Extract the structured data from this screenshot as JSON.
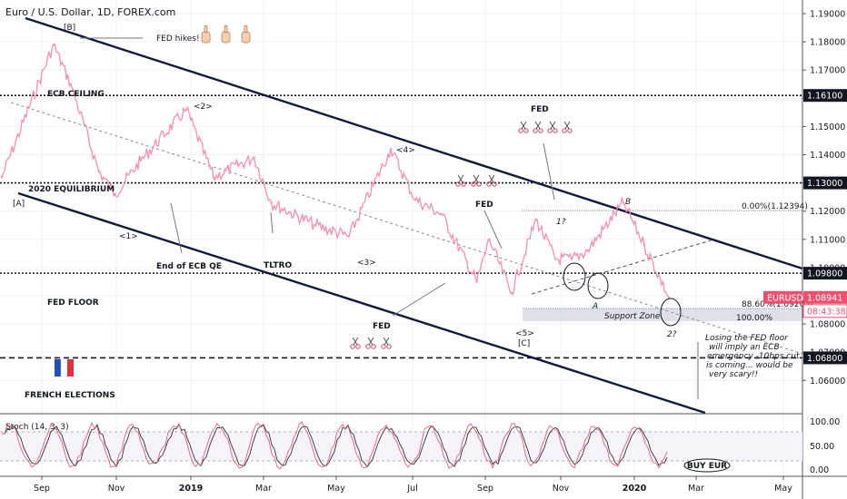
{
  "header": {
    "title": "Euro / U.S. Dollar, 1D, FOREX.com"
  },
  "chart_data": {
    "type": "line",
    "symbol": "EURUSD",
    "last_price": "1.08941",
    "countdown": "08:43:38",
    "ylim": [
      1.055,
      1.195
    ],
    "y_ticks": [
      "1.19000",
      "1.18000",
      "1.17000",
      "1.16000",
      "1.15000",
      "1.14000",
      "1.13000",
      "1.12000",
      "1.11000",
      "1.10000",
      "1.09000",
      "1.08000",
      "1.07000",
      "1.06000"
    ],
    "x_ticks": [
      "Sep",
      "Nov",
      "2019",
      "Mar",
      "May",
      "Jul",
      "Sep",
      "Nov",
      "2020",
      "Mar",
      "May"
    ],
    "x": [
      "2018-08-13",
      "2018-09-24",
      "2018-10-08",
      "2018-10-31",
      "2018-11-13",
      "2018-12-04",
      "2019-01-10",
      "2019-02-01",
      "2019-03-06",
      "2019-03-20",
      "2019-04-25",
      "2019-05-22",
      "2019-06-25",
      "2019-07-15",
      "2019-08-05",
      "2019-09-03",
      "2019-09-13",
      "2019-10-01",
      "2019-10-21",
      "2019-11-06",
      "2019-11-19",
      "2019-12-02",
      "2019-12-31",
      "2020-01-17",
      "2020-02-06"
    ],
    "values": [
      1.132,
      1.179,
      1.165,
      1.134,
      1.126,
      1.138,
      1.156,
      1.132,
      1.139,
      1.123,
      1.115,
      1.111,
      1.142,
      1.124,
      1.119,
      1.095,
      1.11,
      1.091,
      1.117,
      1.103,
      1.103,
      1.106,
      1.123,
      1.108,
      1.0894
    ],
    "levels": [
      {
        "label": "1.16100",
        "value": 1.161,
        "name": "ECB CEILING"
      },
      {
        "label": "1.13000",
        "value": 1.13,
        "name": "2020 EQUILIBRIUM"
      },
      {
        "label": "1.09800",
        "value": 1.098,
        "name": "FED FLOOR"
      },
      {
        "label": "1.06800",
        "value": 1.068,
        "name": "FRENCH ELECTIONS"
      }
    ],
    "fib": {
      "level_0": {
        "label": "0.00%(1.12394)",
        "value": 1.12394
      },
      "level_886": {
        "label": "88.60%(1.09203)",
        "value": 1.09203
      },
      "level_100": {
        "label": "100.00%",
        "value": 1.0879
      }
    },
    "support_zone_label": "Support Zone",
    "wave_labels": [
      "[B]",
      "[A]",
      "<1>",
      "<2>",
      "<3>",
      "<4>",
      "<5>",
      "[C]",
      "1?",
      "2?",
      "A",
      "B"
    ],
    "annotations": {
      "fed_hikes": "FED hikes!",
      "fed": "FED",
      "end_ecb_qe": "End of ECB QE",
      "tltro": "TLTRO",
      "losing_text": [
        "Losing the FED floor",
        "will imply an ECB",
        "emergency -10bps cut",
        "is coming... would be",
        "very scary!!"
      ]
    },
    "stoch": {
      "title": "Stoch (14, 3, 3)",
      "y_ticks": [
        "100.00",
        "50.00",
        "0.00"
      ]
    },
    "buy_label": "BUY EUR",
    "colors": {
      "price": "#f48fb1",
      "channel": "#131a3a",
      "symbol_badge": "#f0506e",
      "level_badge": "#131722",
      "stoch_k": "#e06080",
      "stoch_d": "#333333"
    }
  }
}
